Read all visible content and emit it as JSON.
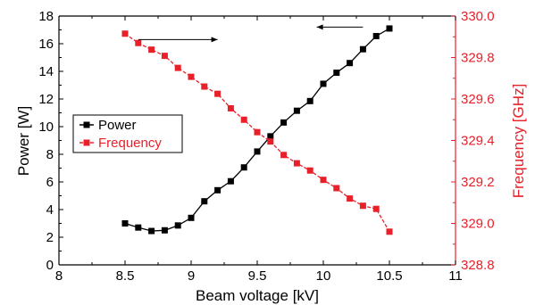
{
  "chart_data": {
    "type": "line",
    "title": "",
    "xlabel": "Beam voltage [kV]",
    "ylabel_left": "Power [W]",
    "ylabel_right": "Frequency [GHz]",
    "xlim": [
      8,
      11
    ],
    "ylim_left": [
      0,
      18
    ],
    "ylim_right": [
      328.8,
      330.0
    ],
    "x_ticks": [
      "8",
      "8.5",
      "9",
      "9.5",
      "10",
      "10.5",
      "11"
    ],
    "y_left_ticks": [
      "0",
      "2",
      "4",
      "6",
      "8",
      "10",
      "12",
      "14",
      "16",
      "18"
    ],
    "y_right_ticks": [
      "328.8",
      "329.0",
      "329.2",
      "329.4",
      "329.6",
      "329.8",
      "330.0"
    ],
    "grid": false,
    "legend_position": "center-left",
    "colors": {
      "power": "#000000",
      "frequency": "#e8202a"
    },
    "series": [
      {
        "name": "Power",
        "axis": "left",
        "marker": "square",
        "x": [
          8.5,
          8.6,
          8.7,
          8.8,
          8.9,
          9.0,
          9.1,
          9.2,
          9.3,
          9.4,
          9.5,
          9.6,
          9.7,
          9.8,
          9.9,
          10.0,
          10.1,
          10.2,
          10.3,
          10.4,
          10.5
        ],
        "values": [
          3.0,
          2.7,
          2.45,
          2.5,
          2.85,
          3.4,
          4.6,
          5.4,
          6.05,
          7.05,
          8.2,
          9.3,
          10.3,
          11.15,
          11.85,
          13.1,
          13.9,
          14.6,
          15.6,
          16.55,
          17.1
        ]
      },
      {
        "name": "Frequency",
        "axis": "right",
        "marker": "square",
        "x": [
          8.5,
          8.6,
          8.7,
          8.8,
          8.9,
          9.0,
          9.1,
          9.2,
          9.3,
          9.4,
          9.5,
          9.6,
          9.7,
          9.8,
          9.9,
          10.0,
          10.1,
          10.2,
          10.3,
          10.4,
          10.5
        ],
        "values": [
          329.915,
          329.87,
          329.838,
          329.808,
          329.75,
          329.707,
          329.66,
          329.625,
          329.555,
          329.5,
          329.44,
          329.395,
          329.33,
          329.29,
          329.255,
          329.21,
          329.17,
          329.12,
          329.085,
          329.07,
          328.96
        ]
      }
    ],
    "annotations": [
      {
        "type": "arrow",
        "direction": "right",
        "series": "Frequency"
      },
      {
        "type": "arrow",
        "direction": "left",
        "series": "Power"
      }
    ]
  }
}
